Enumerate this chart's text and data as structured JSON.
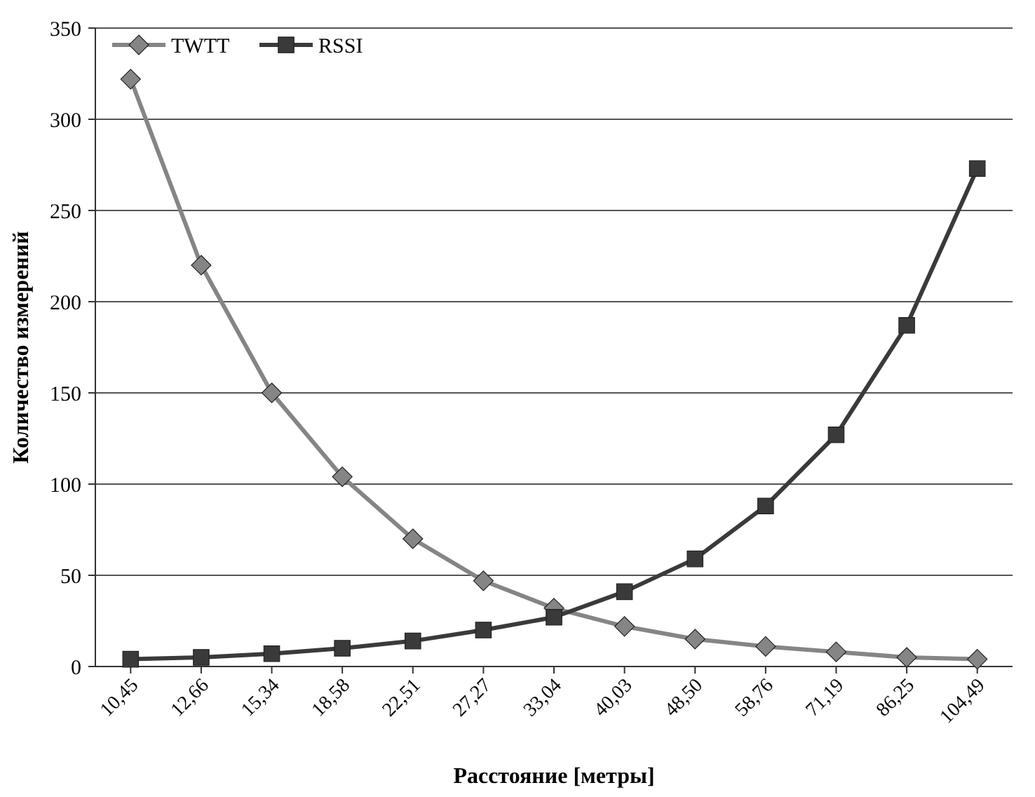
{
  "chart_data": {
    "type": "line",
    "xlabel": "Расстояние [метры]",
    "ylabel": "Количество измерений",
    "categories": [
      "10,45",
      "12,66",
      "15,34",
      "18,58",
      "22,51",
      "27,27",
      "33,04",
      "40,03",
      "48,50",
      "58,76",
      "71,19",
      "86,25",
      "104,49"
    ],
    "series": [
      {
        "name": "TWTT",
        "color": "#858585",
        "marker": "diamond",
        "values": [
          322,
          220,
          150,
          104,
          70,
          47,
          32,
          22,
          15,
          11,
          8,
          5,
          4
        ]
      },
      {
        "name": "RSSI",
        "color": "#3a3a3a",
        "marker": "square",
        "values": [
          4,
          5,
          7,
          10,
          14,
          20,
          27,
          41,
          59,
          88,
          127,
          187,
          273
        ]
      }
    ],
    "ylim": [
      0,
      350
    ],
    "yticks": [
      0,
      50,
      100,
      150,
      200,
      250,
      300,
      350
    ],
    "grid": "y",
    "legend": "top left",
    "line_style": "solid"
  }
}
